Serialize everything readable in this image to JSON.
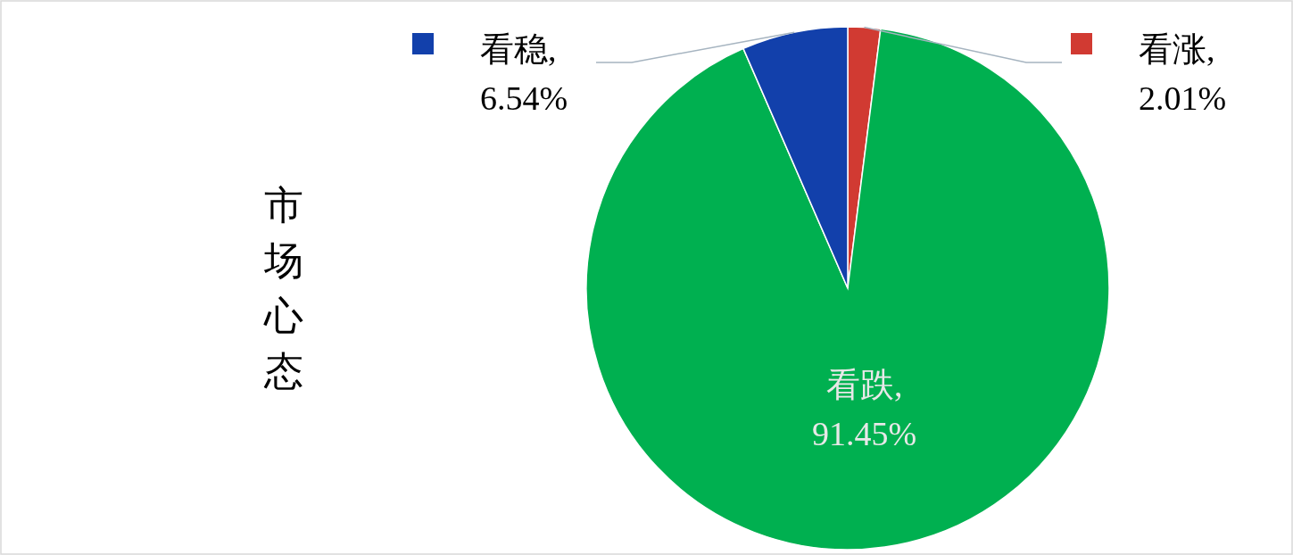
{
  "chart_data": {
    "type": "pie",
    "title": "市场心态",
    "categories": [
      "看涨",
      "看跌",
      "看稳"
    ],
    "values": [
      2.01,
      91.45,
      6.54
    ],
    "colors": [
      "#d13a32",
      "#00b050",
      "#1240ab"
    ],
    "legend": "top",
    "value_labels": [
      ", 2.01%",
      ", 91.45%",
      ", 6.54%"
    ]
  }
}
